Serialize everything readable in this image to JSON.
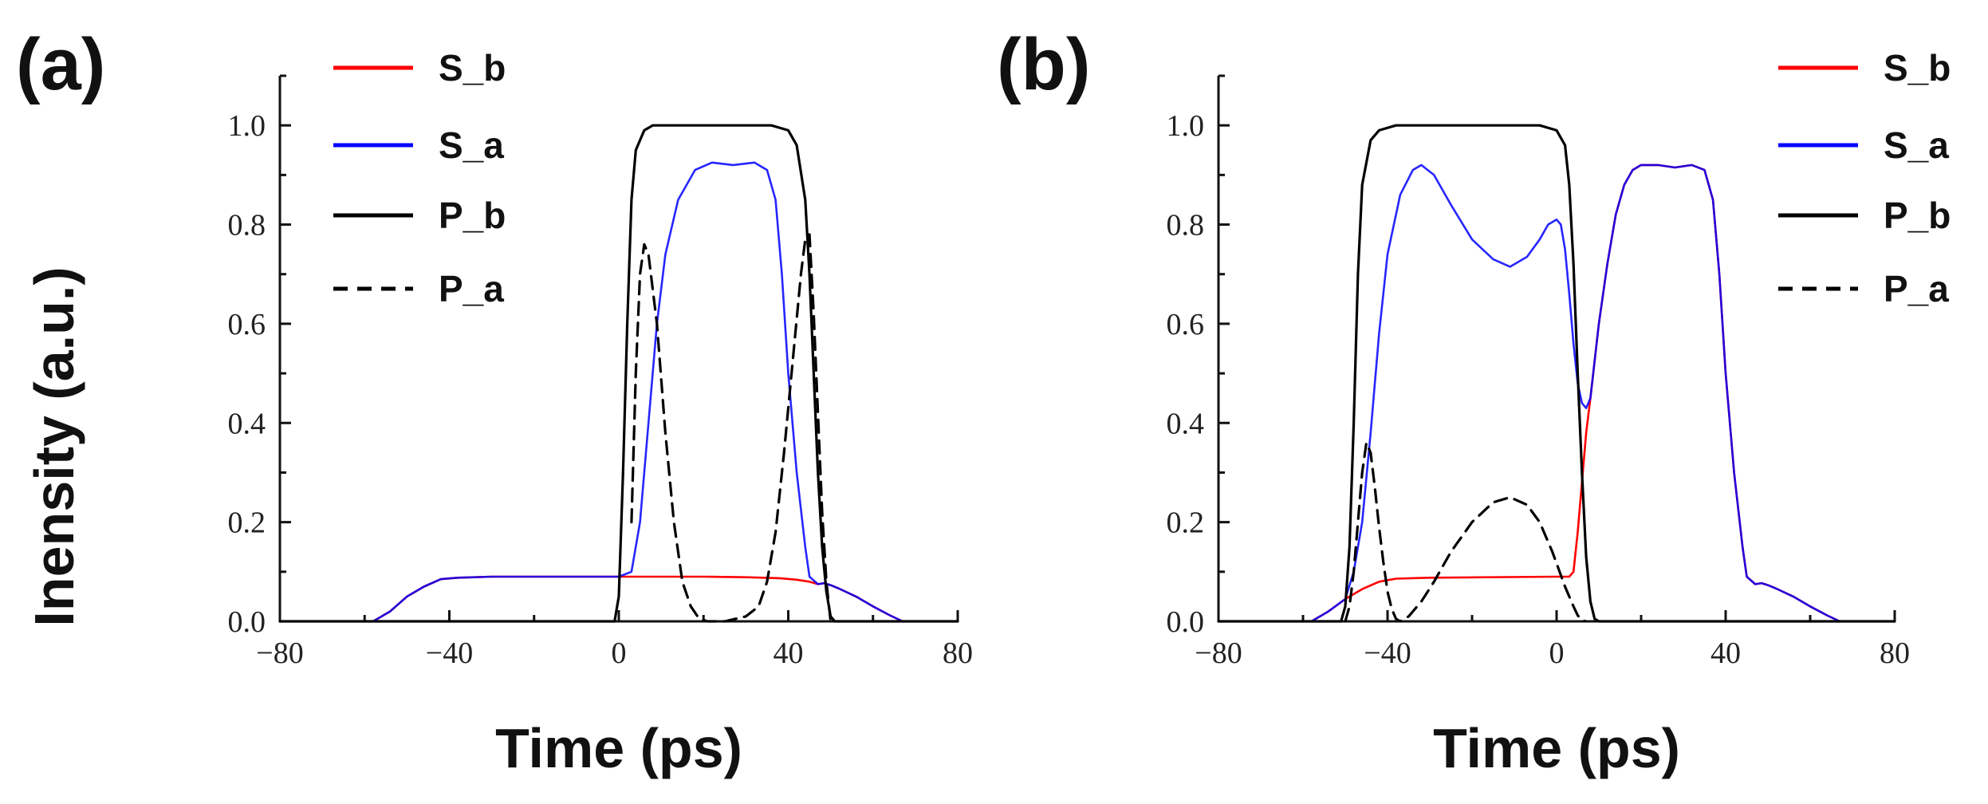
{
  "figure": {
    "ylabel": "Inensity (a.u.)",
    "colors": {
      "S_b": "#ff0000",
      "S_a": "#0000ff",
      "P_b": "#000000",
      "P_a": "#000000"
    }
  },
  "chart_data": [
    {
      "type": "line",
      "panel": "(a)",
      "xlabel": "Time (ps)",
      "ylabel": "Inensity (a.u.)",
      "xlim": [
        -80,
        80
      ],
      "ylim": [
        0,
        1.1
      ],
      "xticks": [
        -80,
        -40,
        0,
        40,
        80
      ],
      "xtick_labels": [
        "−80",
        "−40",
        "0",
        "40",
        "80"
      ],
      "yticks": [
        0,
        0.2,
        0.4,
        0.6,
        0.8,
        1.0
      ],
      "ytick_labels": [
        "0.0",
        "0.2",
        "0.4",
        "0.6",
        "0.8",
        "1.0"
      ],
      "legend": {
        "position": "top-left",
        "entries": [
          "S_b",
          "S_a",
          "P_b",
          "P_a"
        ]
      },
      "series": [
        {
          "name": "S_b",
          "color": "#ff0000",
          "dash": false,
          "x": [
            -80,
            -58,
            -54,
            -50,
            -46,
            -42,
            -38,
            -30,
            0,
            20,
            30,
            38,
            42,
            45,
            47,
            48.5,
            50,
            52,
            56,
            60,
            64,
            67,
            80
          ],
          "y": [
            0,
            0,
            0.02,
            0.05,
            0.07,
            0.085,
            0.088,
            0.09,
            0.09,
            0.09,
            0.089,
            0.087,
            0.084,
            0.08,
            0.075,
            0.077,
            0.073,
            0.066,
            0.05,
            0.03,
            0.012,
            0,
            0
          ]
        },
        {
          "name": "S_a",
          "color": "#0000ff",
          "dash": false,
          "x": [
            -80,
            -58,
            -54,
            -50,
            -46,
            -42,
            -38,
            -30,
            0,
            3,
            5,
            7,
            9,
            11,
            14,
            18,
            22,
            27,
            32,
            35,
            37,
            38.5,
            40,
            42,
            44,
            45,
            47,
            48.5,
            50,
            52,
            56,
            60,
            64,
            67,
            80
          ],
          "y": [
            0,
            0,
            0.02,
            0.05,
            0.07,
            0.085,
            0.088,
            0.09,
            0.09,
            0.1,
            0.2,
            0.4,
            0.6,
            0.74,
            0.85,
            0.91,
            0.925,
            0.92,
            0.925,
            0.91,
            0.85,
            0.7,
            0.5,
            0.3,
            0.15,
            0.09,
            0.075,
            0.077,
            0.073,
            0.066,
            0.05,
            0.03,
            0.012,
            0,
            0
          ]
        },
        {
          "name": "P_b",
          "color": "#000000",
          "dash": false,
          "x": [
            -80,
            -1,
            0,
            1,
            2,
            3,
            4,
            6,
            8,
            12,
            36,
            40,
            42,
            44,
            45,
            46,
            47,
            48,
            49,
            50,
            51,
            80
          ],
          "y": [
            0,
            0,
            0.05,
            0.3,
            0.6,
            0.85,
            0.95,
            0.99,
            1.0,
            1.0,
            1.0,
            0.99,
            0.96,
            0.85,
            0.7,
            0.5,
            0.3,
            0.15,
            0.06,
            0.01,
            0,
            0
          ]
        },
        {
          "name": "P_a",
          "color": "#000000",
          "dash": true,
          "x": [
            3,
            4,
            5,
            6,
            7,
            9,
            11,
            13,
            15,
            17,
            19,
            21,
            25,
            30,
            33,
            35,
            37,
            39,
            41,
            43,
            44,
            45,
            46,
            47,
            48,
            49,
            50
          ],
          "y": [
            0.2,
            0.5,
            0.7,
            0.76,
            0.74,
            0.6,
            0.38,
            0.2,
            0.08,
            0.03,
            0.005,
            0,
            0,
            0.01,
            0.03,
            0.08,
            0.18,
            0.34,
            0.52,
            0.7,
            0.77,
            0.78,
            0.62,
            0.42,
            0.22,
            0.08,
            0
          ]
        }
      ]
    },
    {
      "type": "line",
      "panel": "(b)",
      "xlabel": "Time (ps)",
      "ylabel": "Inensity (a.u.)",
      "xlim": [
        -80,
        80
      ],
      "ylim": [
        0,
        1.1
      ],
      "xticks": [
        -80,
        -40,
        0,
        40,
        80
      ],
      "xtick_labels": [
        "−80",
        "−40",
        "0",
        "40",
        "80"
      ],
      "yticks": [
        0,
        0.2,
        0.4,
        0.6,
        0.8,
        1.0
      ],
      "ytick_labels": [
        "0.0",
        "0.2",
        "0.4",
        "0.6",
        "0.8",
        "1.0"
      ],
      "legend": {
        "position": "top-right",
        "entries": [
          "S_b",
          "S_a",
          "P_b",
          "P_a"
        ]
      },
      "series": [
        {
          "name": "S_b",
          "color": "#ff0000",
          "dash": false,
          "x": [
            -80,
            -58,
            -54,
            -50,
            -46,
            -42,
            -38,
            -30,
            0,
            3,
            4,
            5,
            6,
            7,
            8,
            10,
            12,
            14,
            16,
            18,
            20,
            24,
            28,
            32,
            35,
            37,
            38.5,
            40,
            42,
            44,
            45,
            47,
            48.5,
            50,
            52,
            56,
            60,
            64,
            67,
            80
          ],
          "y": [
            0,
            0,
            0.02,
            0.045,
            0.065,
            0.08,
            0.086,
            0.088,
            0.09,
            0.09,
            0.1,
            0.18,
            0.28,
            0.38,
            0.45,
            0.6,
            0.72,
            0.82,
            0.88,
            0.91,
            0.92,
            0.92,
            0.915,
            0.92,
            0.91,
            0.85,
            0.7,
            0.5,
            0.3,
            0.15,
            0.09,
            0.075,
            0.077,
            0.073,
            0.066,
            0.05,
            0.03,
            0.012,
            0,
            0
          ]
        },
        {
          "name": "S_a",
          "color": "#0000ff",
          "dash": false,
          "x": [
            -80,
            -58,
            -54,
            -50,
            -48,
            -46,
            -44,
            -42,
            -40,
            -37,
            -34,
            -32,
            -29,
            -25,
            -20,
            -15,
            -11,
            -7,
            -4,
            -2,
            0,
            1,
            2,
            3,
            4,
            5,
            6,
            7,
            8,
            10,
            12,
            14,
            16,
            18,
            20,
            24,
            28,
            32,
            35,
            37,
            38.5,
            40,
            42,
            44,
            45,
            47,
            48.5,
            50,
            52,
            56,
            60,
            64,
            67,
            80
          ],
          "y": [
            0,
            0,
            0.02,
            0.045,
            0.1,
            0.2,
            0.38,
            0.58,
            0.74,
            0.86,
            0.91,
            0.92,
            0.9,
            0.84,
            0.77,
            0.73,
            0.715,
            0.735,
            0.77,
            0.8,
            0.81,
            0.8,
            0.75,
            0.66,
            0.56,
            0.48,
            0.44,
            0.43,
            0.45,
            0.6,
            0.72,
            0.82,
            0.88,
            0.91,
            0.92,
            0.92,
            0.915,
            0.92,
            0.91,
            0.85,
            0.7,
            0.5,
            0.3,
            0.15,
            0.09,
            0.075,
            0.077,
            0.073,
            0.066,
            0.05,
            0.03,
            0.012,
            0,
            0
          ]
        },
        {
          "name": "P_b",
          "color": "#000000",
          "dash": false,
          "x": [
            -80,
            -51,
            -50,
            -49,
            -48,
            -47,
            -46,
            -44,
            -42,
            -38,
            -4,
            0,
            2,
            3,
            4,
            5,
            6,
            7,
            8,
            9,
            10,
            80
          ],
          "y": [
            0,
            0,
            0.03,
            0.15,
            0.4,
            0.7,
            0.88,
            0.97,
            0.99,
            1.0,
            1.0,
            0.99,
            0.96,
            0.88,
            0.72,
            0.5,
            0.3,
            0.13,
            0.04,
            0.005,
            0,
            0
          ]
        },
        {
          "name": "P_a",
          "color": "#000000",
          "dash": true,
          "x": [
            -50,
            -49,
            -48,
            -47,
            -46,
            -45,
            -44,
            -43,
            -42,
            -41,
            -40,
            -39,
            -38,
            -37,
            -35,
            -32,
            -29,
            -25,
            -20,
            -15,
            -11,
            -7,
            -4,
            -1,
            2,
            4,
            5,
            6,
            7
          ],
          "y": [
            0,
            0.03,
            0.1,
            0.2,
            0.3,
            0.36,
            0.34,
            0.27,
            0.19,
            0.12,
            0.06,
            0.025,
            0.005,
            0,
            0.01,
            0.04,
            0.08,
            0.14,
            0.2,
            0.24,
            0.25,
            0.235,
            0.2,
            0.14,
            0.07,
            0.03,
            0.012,
            0.002,
            0
          ]
        }
      ]
    }
  ]
}
